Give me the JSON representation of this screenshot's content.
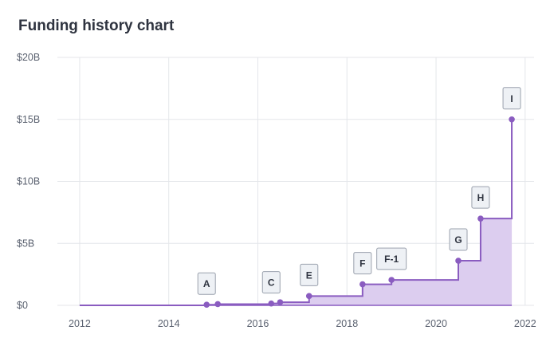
{
  "header": {
    "title": "Funding history chart"
  },
  "chart_data": {
    "type": "area",
    "title": "Funding history chart",
    "xlabel": "",
    "ylabel": "",
    "xlim": [
      2011.5,
      2022.2
    ],
    "ylim": [
      0,
      20
    ],
    "x_ticks": [
      {
        "value": 2012,
        "label": "2012"
      },
      {
        "value": 2014,
        "label": "2014"
      },
      {
        "value": 2016,
        "label": "2016"
      },
      {
        "value": 2018,
        "label": "2018"
      },
      {
        "value": 2020,
        "label": "2020"
      },
      {
        "value": 2022,
        "label": "2022"
      }
    ],
    "y_ticks": [
      {
        "value": 0,
        "label": "$0"
      },
      {
        "value": 5,
        "label": "$5B"
      },
      {
        "value": 10,
        "label": "$10B"
      },
      {
        "value": 15,
        "label": "$15B"
      },
      {
        "value": 20,
        "label": "$20B"
      }
    ],
    "grid": true,
    "step": true,
    "start_x": 2012,
    "points": [
      {
        "x": 2014.85,
        "y": 0.05,
        "label": "A"
      },
      {
        "x": 2015.1,
        "y": 0.1,
        "label": ""
      },
      {
        "x": 2016.3,
        "y": 0.15,
        "label": "C"
      },
      {
        "x": 2016.5,
        "y": 0.25,
        "label": ""
      },
      {
        "x": 2017.15,
        "y": 0.75,
        "label": "E"
      },
      {
        "x": 2018.35,
        "y": 1.7,
        "label": "F"
      },
      {
        "x": 2019.0,
        "y": 2.05,
        "label": "F-1"
      },
      {
        "x": 2020.5,
        "y": 3.6,
        "label": "G"
      },
      {
        "x": 2021.0,
        "y": 7.0,
        "label": "H"
      },
      {
        "x": 2021.7,
        "y": 15.0,
        "label": "I"
      }
    ],
    "colors": {
      "line": "#8a5cc0",
      "fill": "#dccdef",
      "grid": "#e4e6ea",
      "label_bg": "#eef1f5",
      "label_border": "#9aa1ad"
    }
  }
}
